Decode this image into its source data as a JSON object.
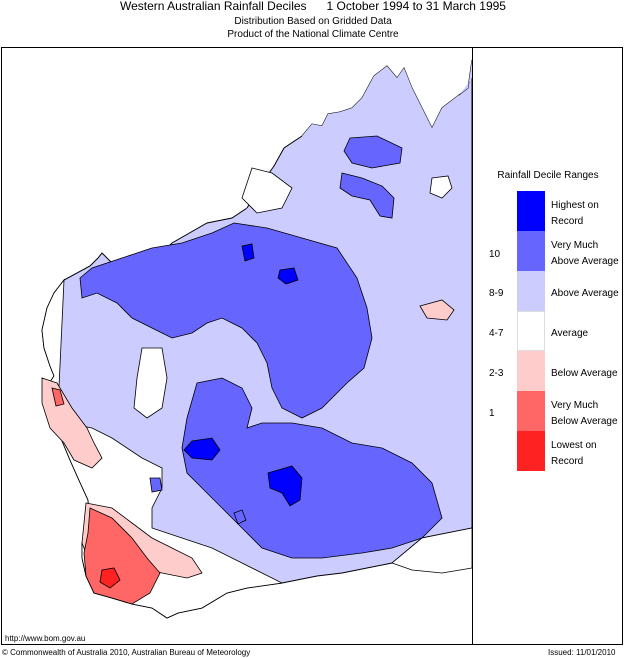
{
  "header": {
    "title": "Western Australian Rainfall Deciles      1 October 1994 to 31 March 1995",
    "subtitle1": "Distribution Based on Gridded Data",
    "subtitle2": "Product of the National Climate Centre"
  },
  "legend": {
    "title": "Rainfall Decile Ranges",
    "items": [
      {
        "range": "",
        "label": "Highest on Record",
        "color": "#0000ff"
      },
      {
        "range": "10",
        "label": "Very Much Above Average",
        "color": "#6666ff"
      },
      {
        "range": "8-9",
        "label": "Above Average",
        "color": "#ccccff"
      },
      {
        "range": "4-7",
        "label": "Average",
        "color": "#ffffff"
      },
      {
        "range": "2-3",
        "label": "Below Average",
        "color": "#ffcccc"
      },
      {
        "range": "1",
        "label": "Very Much Below Average",
        "color": "#ff6666"
      },
      {
        "range": "",
        "label": "Lowest on Record",
        "color": "#ff2222"
      }
    ]
  },
  "footer": {
    "url": "http://www.bom.gov.au",
    "copyright": "© Commonwealth of Australia 2010, Australian Bureau of Meteorology",
    "issued": "Issued: 11/01/2010"
  }
}
